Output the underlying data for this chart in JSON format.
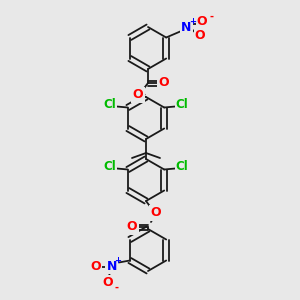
{
  "bg_color": "#e8e8e8",
  "bond_color": "#1a1a1a",
  "bond_width": 1.3,
  "atom_colors": {
    "O": "#ff0000",
    "N": "#0000ff",
    "Cl": "#00bb00"
  },
  "figsize": [
    3.0,
    3.0
  ],
  "dpi": 100
}
